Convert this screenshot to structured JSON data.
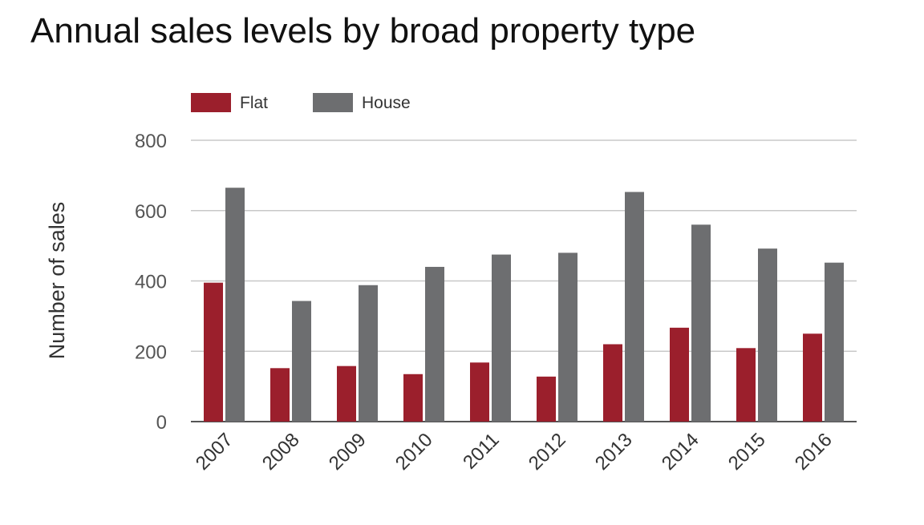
{
  "chart_data": {
    "type": "bar",
    "title": "Annual sales levels by broad property type",
    "xlabel": "",
    "ylabel": "Number of sales",
    "ylim": [
      0,
      800
    ],
    "yticks": [
      0,
      200,
      400,
      600,
      800
    ],
    "categories": [
      "2007",
      "2008",
      "2009",
      "2010",
      "2011",
      "2012",
      "2013",
      "2014",
      "2015",
      "2016"
    ],
    "series": [
      {
        "name": "Flat",
        "color": "#9b1f2c",
        "values": [
          395,
          152,
          158,
          135,
          168,
          128,
          220,
          267,
          209,
          250
        ]
      },
      {
        "name": "House",
        "color": "#6d6e70",
        "values": [
          665,
          343,
          388,
          440,
          475,
          480,
          653,
          560,
          492,
          452
        ]
      }
    ],
    "legend_position": "top-left",
    "grid": true
  }
}
